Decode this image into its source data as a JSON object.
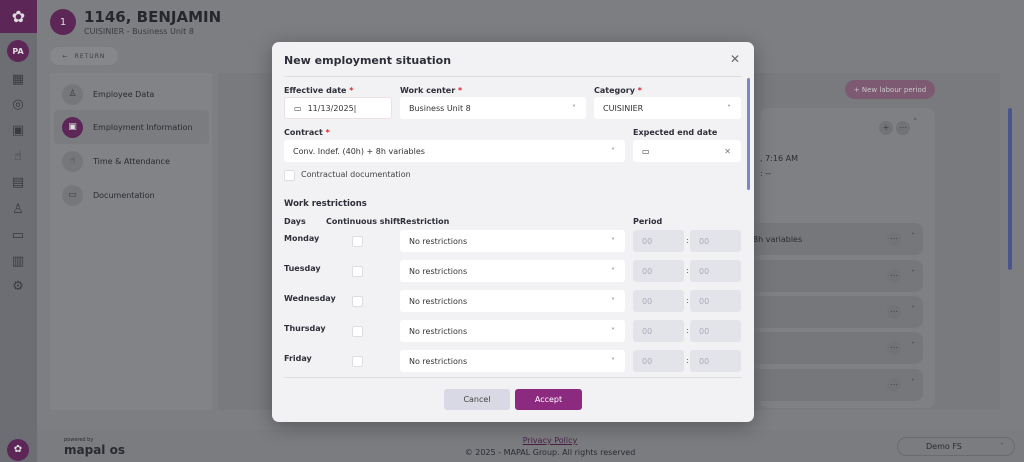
{
  "rail": {
    "avatar": "PA",
    "icons": [
      "dashboard-icon",
      "user-circle-icon",
      "calendar-icon",
      "hand-touch-icon",
      "document-icon",
      "user-search-icon",
      "archive-icon",
      "report-icon",
      "gear-icon"
    ]
  },
  "header": {
    "badge": "1",
    "title": "1146, BENJAMIN",
    "subtitle": "CUISINIER - Business Unit 8",
    "return_label": "RETURN"
  },
  "nav": {
    "items": [
      {
        "label": "Employee Data",
        "icon": "user-icon"
      },
      {
        "label": "Employment Information",
        "icon": "briefcase-icon",
        "active": true
      },
      {
        "label": "Time & Attendance",
        "icon": "hand-touch-icon"
      },
      {
        "label": "Documentation",
        "icon": "archive-icon"
      }
    ]
  },
  "content": {
    "new_period_label": "New labour period",
    "card_time": ", 7:16 AM",
    "card_dash": ": --",
    "rows": [
      "8h variables",
      "",
      "",
      "",
      ""
    ]
  },
  "footer": {
    "powered_by": "powered by",
    "brand": "mapal os",
    "privacy": "Privacy Policy",
    "copyright": "© 2025 - MAPAL Group. All rights reserved",
    "company": "Demo FS"
  },
  "modal": {
    "title": "New employment situation",
    "effective_date": {
      "label": "Effective date",
      "value": "11/13/2025"
    },
    "work_center": {
      "label": "Work center",
      "value": "Business Unit 8"
    },
    "category": {
      "label": "Category",
      "value": "CUISINIER"
    },
    "contract": {
      "label": "Contract",
      "value": "Conv. Indef. (40h) + 8h variables"
    },
    "expected_end": {
      "label": "Expected end date",
      "value": ""
    },
    "contractual_doc": {
      "label": "Contractual documentation",
      "checked": false
    },
    "restrictions": {
      "title": "Work restrictions",
      "headers": {
        "days": "Days",
        "continuous": "Continuous shift",
        "restriction": "Restriction",
        "period": "Period"
      },
      "rows": [
        {
          "day": "Monday",
          "restriction": "No restrictions",
          "from": "00",
          "to": "00"
        },
        {
          "day": "Tuesday",
          "restriction": "No restrictions",
          "from": "00",
          "to": "00"
        },
        {
          "day": "Wednesday",
          "restriction": "No restrictions",
          "from": "00",
          "to": "00"
        },
        {
          "day": "Thursday",
          "restriction": "No restrictions",
          "from": "00",
          "to": "00"
        },
        {
          "day": "Friday",
          "restriction": "No restrictions",
          "from": "00",
          "to": "00"
        }
      ]
    },
    "cancel": "Cancel",
    "accept": "Accept"
  },
  "colors": {
    "brand": "#8c2a80",
    "required": "#dd2222"
  }
}
